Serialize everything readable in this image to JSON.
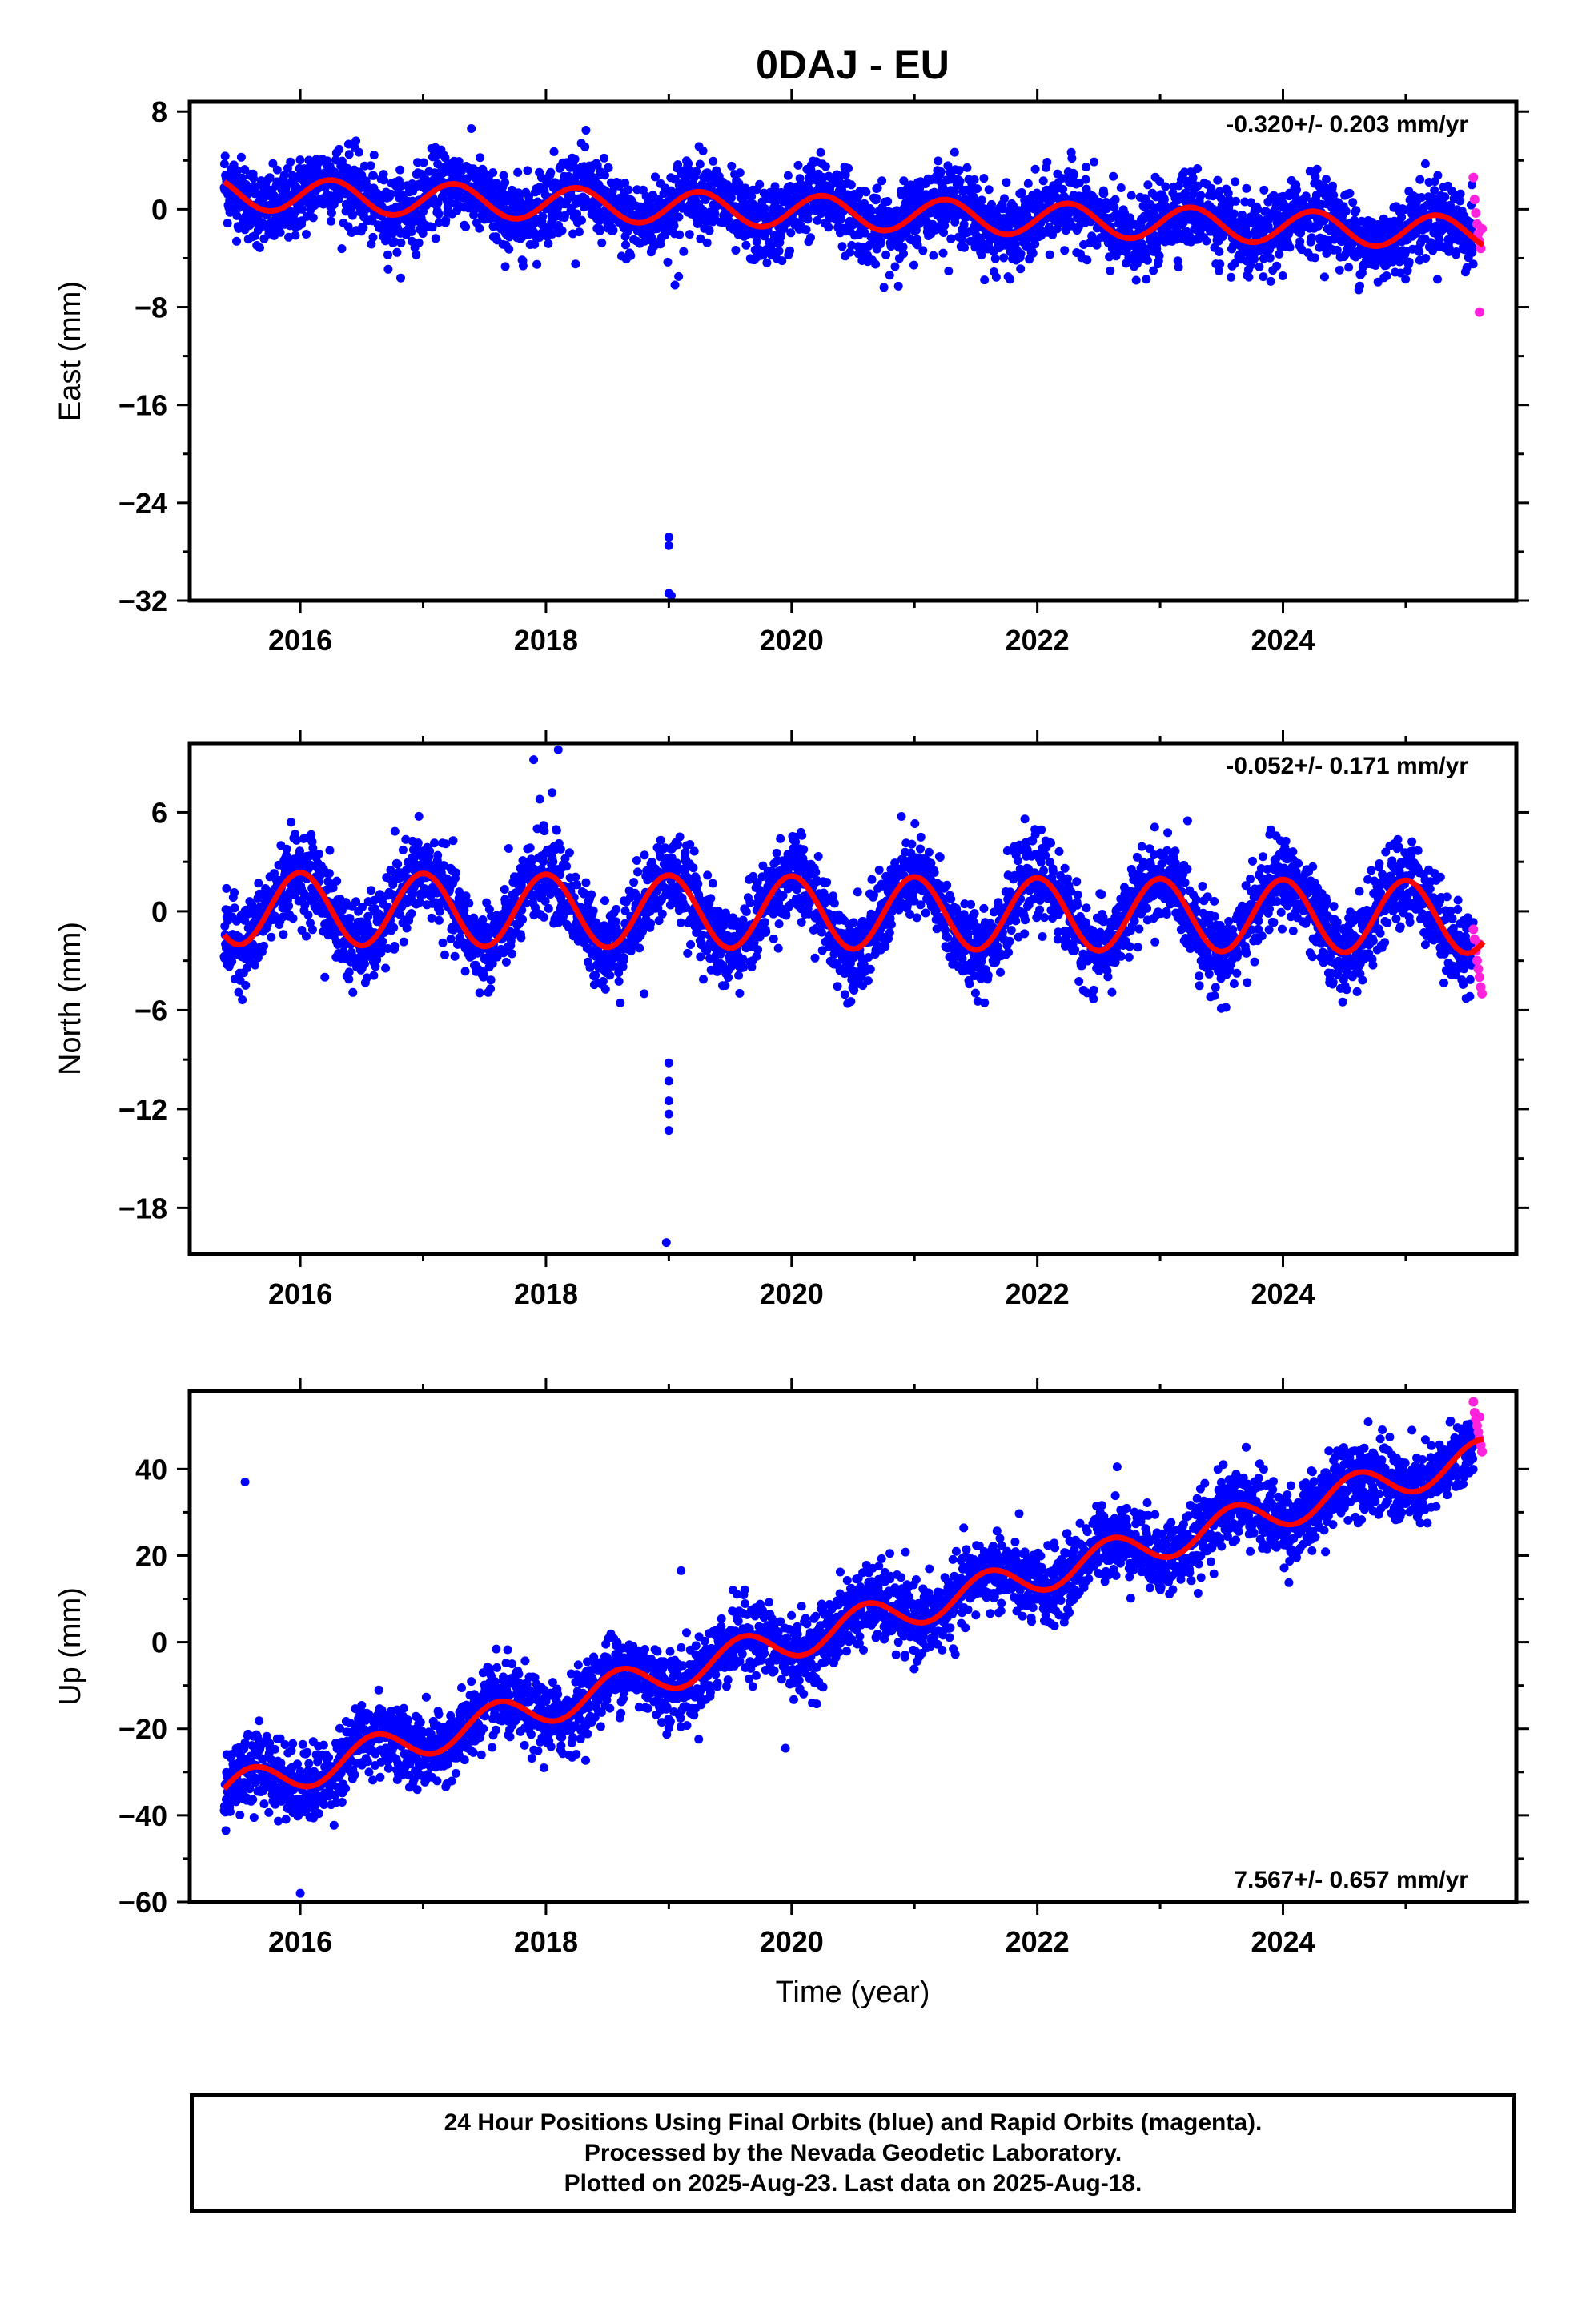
{
  "title": "0DAJ - EU",
  "xlabel": "Time (year)",
  "footer": {
    "line1": "24 Hour Positions Using Final Orbits (blue) and Rapid Orbits (magenta).",
    "line2": "Processed by the Nevada Geodetic Laboratory.",
    "line3": "Plotted on 2025-Aug-23. Last data on 2025-Aug-18."
  },
  "colors": {
    "final": "#0000ff",
    "rapid": "#ff22dd",
    "fit": "#ff0000"
  },
  "chart_data": [
    {
      "type": "scatter",
      "component": "east",
      "ylabel": "East (mm)",
      "rate_text": "-0.320+/- 0.203 mm/yr",
      "rate_position": "top-right",
      "xlim": [
        2015.1,
        2025.9
      ],
      "ylim": [
        -32,
        8.8
      ],
      "xticks": [
        2016,
        2018,
        2020,
        2022,
        2024
      ],
      "xtick_labels": [
        "2016",
        "2018",
        "2020",
        "2022",
        "2024"
      ],
      "yticks": [
        8,
        0,
        -8,
        -16,
        -24,
        -32
      ],
      "ytick_labels": [
        "8",
        "0",
        "−8",
        "−16",
        "−24",
        "−32"
      ],
      "series": [
        {
          "kind": "final-orbit-points",
          "trend": {
            "start": 2015.38,
            "end": 2025.55,
            "intercept_at_2015": 1.45,
            "rate": -0.32,
            "annual_amp": 1.35,
            "annual_peak": 0.25,
            "noise": 1.55
          },
          "outliers": [
            {
              "x": 2019.0,
              "y": -26.8
            },
            {
              "x": 2019.0,
              "y": -27.5
            },
            {
              "x": 2019.0,
              "y": -31.4
            },
            {
              "x": 2019.02,
              "y": -31.6
            },
            {
              "x": 2019.05,
              "y": -6.2
            },
            {
              "x": 2019.08,
              "y": -5.5
            }
          ]
        },
        {
          "kind": "rapid-orbit-points",
          "points": [
            {
              "x": 2025.55,
              "y": 2.6
            },
            {
              "x": 2025.56,
              "y": 0.8
            },
            {
              "x": 2025.57,
              "y": -0.3
            },
            {
              "x": 2025.58,
              "y": -1.2
            },
            {
              "x": 2025.59,
              "y": -2.0
            },
            {
              "x": 2025.6,
              "y": -2.6
            },
            {
              "x": 2025.61,
              "y": -3.2
            },
            {
              "x": 2025.62,
              "y": -1.6
            },
            {
              "x": 2025.6,
              "y": -8.4
            }
          ]
        },
        {
          "kind": "fit-curve",
          "annual_amp": 1.35,
          "annual_peak": 0.25,
          "rate": -0.32,
          "intercept_at_2015": 1.45
        }
      ]
    },
    {
      "type": "scatter",
      "component": "north",
      "ylabel": "North (mm)",
      "rate_text": "-0.052+/- 0.171 mm/yr",
      "rate_position": "top-right",
      "xlim": [
        2015.1,
        2025.9
      ],
      "ylim": [
        -20.8,
        10.2
      ],
      "xticks": [
        2016,
        2018,
        2020,
        2022,
        2024
      ],
      "xtick_labels": [
        "2016",
        "2018",
        "2020",
        "2022",
        "2024"
      ],
      "yticks": [
        6,
        0,
        -6,
        -12,
        -18
      ],
      "ytick_labels": [
        "6",
        "0",
        "−6",
        "−12",
        "−18"
      ],
      "series": [
        {
          "kind": "final-orbit-points",
          "trend": {
            "start": 2015.38,
            "end": 2025.55,
            "intercept_at_2015": 0.2,
            "rate": -0.052,
            "annual_amp": 2.2,
            "annual_peak": 0.0,
            "noise": 1.25
          },
          "outliers": [
            {
              "x": 2017.9,
              "y": 9.2
            },
            {
              "x": 2018.1,
              "y": 9.8
            },
            {
              "x": 2018.05,
              "y": 7.2
            },
            {
              "x": 2017.95,
              "y": 6.8
            },
            {
              "x": 2019.0,
              "y": -9.2
            },
            {
              "x": 2019.0,
              "y": -10.3
            },
            {
              "x": 2019.0,
              "y": -11.5
            },
            {
              "x": 2019.0,
              "y": -12.3
            },
            {
              "x": 2019.0,
              "y": -13.3
            },
            {
              "x": 2018.98,
              "y": -20.1
            },
            {
              "x": 2016.2,
              "y": -4.0
            },
            {
              "x": 2018.8,
              "y": -5.0
            }
          ]
        },
        {
          "kind": "rapid-orbit-points",
          "points": [
            {
              "x": 2025.55,
              "y": -1.1
            },
            {
              "x": 2025.56,
              "y": -1.7
            },
            {
              "x": 2025.57,
              "y": -2.4
            },
            {
              "x": 2025.58,
              "y": -3.0
            },
            {
              "x": 2025.59,
              "y": -3.5
            },
            {
              "x": 2025.6,
              "y": -4.0
            },
            {
              "x": 2025.61,
              "y": -4.6
            },
            {
              "x": 2025.62,
              "y": -5.0
            },
            {
              "x": 2025.6,
              "y": -2.0
            }
          ]
        },
        {
          "kind": "fit-curve",
          "annual_amp": 2.2,
          "annual_peak": 0.0,
          "rate": -0.052,
          "intercept_at_2015": 0.2
        }
      ]
    },
    {
      "type": "scatter",
      "component": "up",
      "ylabel": "Up (mm)",
      "rate_text": "7.567+/- 0.657 mm/yr",
      "rate_position": "bottom-right",
      "xlim": [
        2015.1,
        2025.9
      ],
      "ylim": [
        -60,
        58
      ],
      "xticks": [
        2016,
        2018,
        2020,
        2022,
        2024
      ],
      "xtick_labels": [
        "2016",
        "2018",
        "2020",
        "2022",
        "2024"
      ],
      "yticks": [
        40,
        20,
        0,
        -20,
        -40,
        -60
      ],
      "ytick_labels": [
        "40",
        "20",
        "0",
        "−20",
        "−40",
        "−60"
      ],
      "series": [
        {
          "kind": "final-orbit-points",
          "trend": {
            "start": 2015.38,
            "end": 2025.55,
            "intercept_at_2015": -37.5,
            "rate": 7.567,
            "annual_amp": 4.0,
            "annual_peak": 0.6,
            "noise": 4.3
          },
          "outliers": [
            {
              "x": 2015.55,
              "y": 37.0
            },
            {
              "x": 2016.0,
              "y": -58.0
            },
            {
              "x": 2019.1,
              "y": 16.5
            },
            {
              "x": 2019.95,
              "y": -24.5
            },
            {
              "x": 2020.8,
              "y": 20.5
            },
            {
              "x": 2022.65,
              "y": 40.5
            },
            {
              "x": 2023.7,
              "y": 45.0
            }
          ]
        },
        {
          "kind": "rapid-orbit-points",
          "points": [
            {
              "x": 2025.55,
              "y": 55.5
            },
            {
              "x": 2025.56,
              "y": 53.0
            },
            {
              "x": 2025.57,
              "y": 51.5
            },
            {
              "x": 2025.58,
              "y": 50.0
            },
            {
              "x": 2025.59,
              "y": 48.5
            },
            {
              "x": 2025.6,
              "y": 47.0
            },
            {
              "x": 2025.61,
              "y": 45.5
            },
            {
              "x": 2025.62,
              "y": 44.0
            },
            {
              "x": 2025.6,
              "y": 52.0
            }
          ]
        },
        {
          "kind": "fit-curve",
          "annual_amp": 4.0,
          "annual_peak": 0.6,
          "rate": 7.567,
          "intercept_at_2015": -37.5
        }
      ]
    }
  ]
}
